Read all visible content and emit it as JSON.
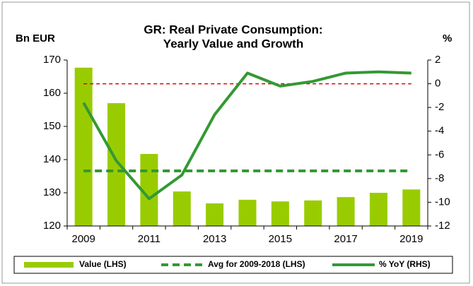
{
  "chart_data": {
    "type": "bar-line",
    "title": "GR: Real Private Consumption:",
    "subtitle": "Yearly Value and Growth",
    "y_label": "Bn EUR",
    "y2_label": "%",
    "categories": [
      "2009",
      null,
      "2011",
      null,
      "2013",
      null,
      "2015",
      null,
      "2017",
      null,
      "2019"
    ],
    "series": [
      {
        "name": "Value (LHS)",
        "type": "bar",
        "color": "#99cc00",
        "axis": "y",
        "values": [
          167.7,
          157,
          141.7,
          130.4,
          126.8,
          127.9,
          127.4,
          127.7,
          128.7,
          130,
          131
        ]
      },
      {
        "name": "Avg for 2009-2018 (LHS)",
        "type": "hline",
        "style": "dashed",
        "color": "#339933",
        "axis": "y",
        "value": 136.6
      },
      {
        "name": "% YoY (RHS)",
        "type": "line",
        "color": "#339933",
        "axis": "y2",
        "values": [
          -1.6,
          -6.5,
          -9.7,
          -7.7,
          -2.6,
          0.9,
          -0.2,
          0.2,
          0.9,
          1.0,
          0.9
        ]
      }
    ],
    "reference_lines": [
      {
        "axis": "y2",
        "value": 0,
        "color": "#e00000",
        "style": "dashed"
      }
    ],
    "ylim": [
      120,
      170
    ],
    "yticks": [
      120,
      130,
      140,
      150,
      160,
      170
    ],
    "y2lim": [
      -12,
      2
    ],
    "y2ticks": [
      -12,
      -10,
      -8,
      -6,
      -4,
      -2,
      0,
      2
    ],
    "legend": "bottom"
  }
}
